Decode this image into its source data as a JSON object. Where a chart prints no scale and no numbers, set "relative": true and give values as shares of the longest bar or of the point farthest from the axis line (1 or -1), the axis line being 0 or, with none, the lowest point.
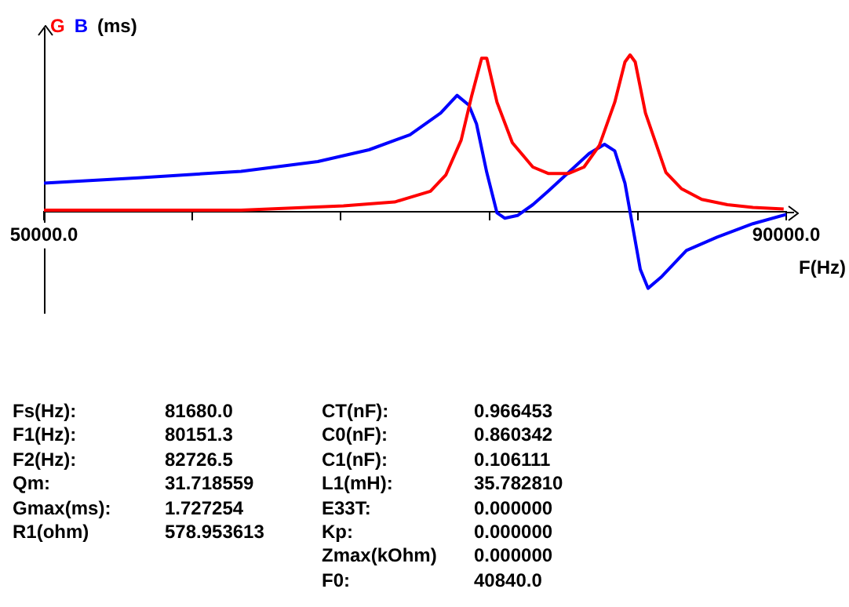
{
  "chart_data": {
    "type": "line",
    "relative": true,
    "ylabel": "(ms)",
    "xlabel": "F(Hz)",
    "legend": "top left",
    "xlim": [
      50000,
      90000
    ],
    "xticks": [
      {
        "value": 50000,
        "label": "50000.0"
      },
      {
        "value": 58000,
        "label": null
      },
      {
        "value": 66000,
        "label": null
      },
      {
        "value": 74000,
        "label": null
      },
      {
        "value": 82000,
        "label": null
      },
      {
        "value": 90000,
        "label": "90000.0"
      }
    ],
    "series": [
      {
        "name": "G",
        "color": "#ff0000",
        "x": [
          50000,
          60621,
          66138,
          68897,
          70828,
          71655,
          72483,
          73035,
          73586,
          73862,
          74414,
          75241,
          76345,
          77172,
          78276,
          79103,
          79931,
          80759,
          81310,
          81586,
          81862,
          82414,
          83517,
          84345,
          85448,
          86828,
          88207,
          89862
        ],
        "values": [
          0.01,
          0.01,
          0.038,
          0.062,
          0.131,
          0.234,
          0.457,
          0.732,
          0.979,
          0.979,
          0.698,
          0.44,
          0.285,
          0.244,
          0.244,
          0.285,
          0.423,
          0.698,
          0.955,
          1.0,
          0.955,
          0.629,
          0.251,
          0.148,
          0.079,
          0.045,
          0.027,
          0.017
        ]
      },
      {
        "name": "B",
        "color": "#0000ff",
        "x": [
          50000,
          55103,
          60621,
          64759,
          67517,
          69724,
          71379,
          72262,
          72897,
          73310,
          73862,
          74414,
          74828,
          75517,
          76345,
          77172,
          78276,
          79379,
          80207,
          80759,
          81310,
          81724,
          82138,
          82552,
          83241,
          84621,
          86276,
          88207,
          90000
        ],
        "values": [
          0.182,
          0.216,
          0.258,
          0.32,
          0.395,
          0.491,
          0.629,
          0.742,
          0.68,
          0.56,
          0.251,
          -0.007,
          -0.041,
          -0.024,
          0.045,
          0.131,
          0.251,
          0.371,
          0.43,
          0.388,
          0.182,
          -0.093,
          -0.368,
          -0.488,
          -0.419,
          -0.247,
          -0.162,
          -0.076,
          -0.017
        ]
      }
    ],
    "annotations": [
      "Fs(Hz): 81680.0",
      "F1(Hz): 80151.3",
      "F2(Hz): 82726.5",
      "Qm: 31.718559",
      "Gmax(ms): 1.727254",
      "R1(ohm) 578.953613",
      "CT(nF): 0.966453",
      "C0(nF): 0.860342",
      "C1(nF): 0.106111",
      "L1(mH): 35.782810",
      "E33T: 0.000000",
      "Kp: 0.000000",
      "Zmax(kOhm) 0.000000",
      "F0: 40840.0"
    ]
  }
}
